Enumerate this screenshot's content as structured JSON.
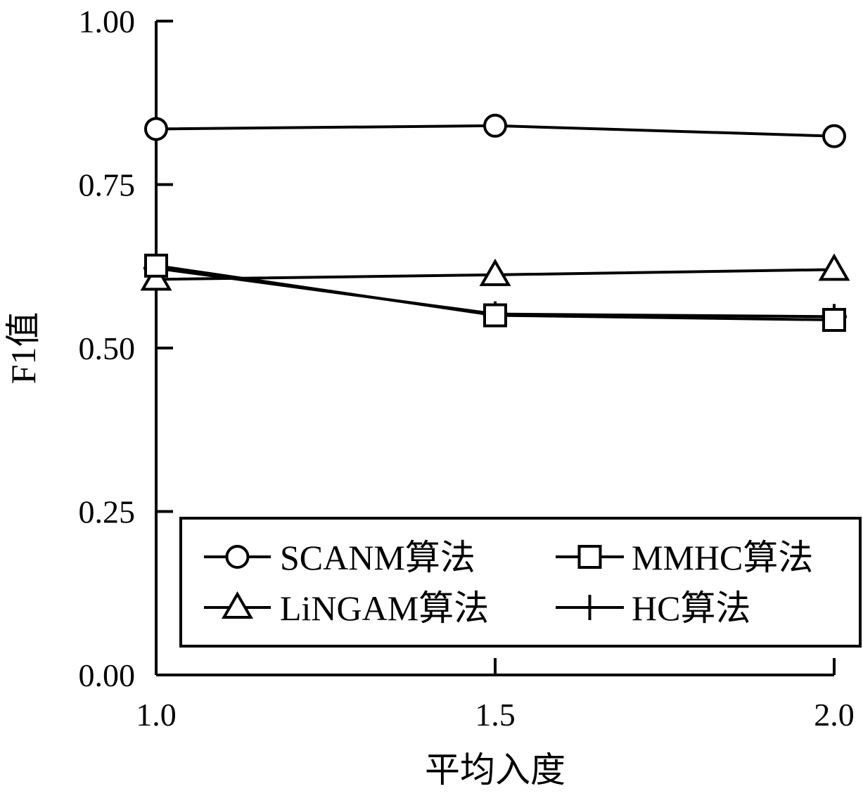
{
  "chart_data": {
    "type": "line",
    "xlabel": "平均入度",
    "ylabel": "F1值",
    "x": [
      1.0,
      1.5,
      2.0
    ],
    "xticks": [
      "1.0",
      "1.5",
      "2.0"
    ],
    "yticks": [
      "0.00",
      "0.25",
      "0.50",
      "0.75",
      "1.00"
    ],
    "xlim": [
      1.0,
      2.0
    ],
    "ylim": [
      0.0,
      1.0
    ],
    "grid": false,
    "legend_position": "bottom-right",
    "series": [
      {
        "name": "SCANM算法",
        "marker": "circle",
        "values": [
          0.835,
          0.84,
          0.824
        ]
      },
      {
        "name": "MMHC算法",
        "marker": "square",
        "values": [
          0.626,
          0.55,
          0.543
        ]
      },
      {
        "name": "LiNGAM算法",
        "marker": "triangle",
        "values": [
          0.605,
          0.612,
          0.62
        ]
      },
      {
        "name": "HC算法",
        "marker": "plus",
        "values": [
          0.622,
          0.552,
          0.548
        ]
      }
    ],
    "color": "#000000"
  }
}
